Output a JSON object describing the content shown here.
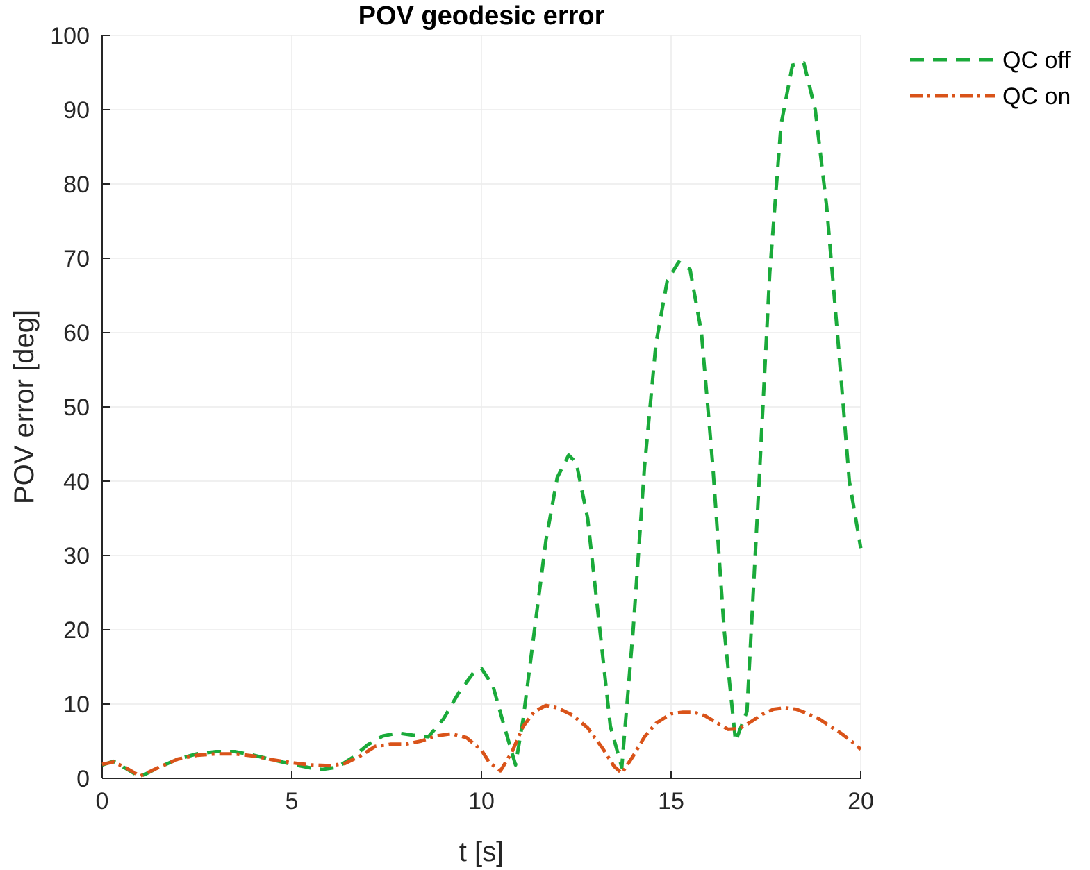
{
  "chart_data": {
    "type": "line",
    "title": "POV geodesic error",
    "xlabel": "t [s]",
    "ylabel": "POV error [deg]",
    "xlim": [
      0,
      20
    ],
    "ylim": [
      0,
      100
    ],
    "xticks": [
      0,
      5,
      10,
      15,
      20
    ],
    "yticks": [
      0,
      10,
      20,
      30,
      40,
      50,
      60,
      70,
      80,
      90,
      100
    ],
    "grid": true,
    "legend_position": "top-right outside",
    "series": [
      {
        "name": "QC off",
        "color": "#1aaa3a",
        "style": "dashed",
        "x": [
          0,
          0.3,
          0.6,
          1.0,
          1.5,
          2.0,
          2.5,
          3.0,
          3.5,
          4.0,
          4.5,
          5.0,
          5.5,
          5.8,
          6.2,
          6.6,
          7.0,
          7.4,
          7.8,
          8.2,
          8.6,
          9.0,
          9.4,
          9.8,
          10.0,
          10.3,
          10.6,
          10.9,
          11.1,
          11.4,
          11.7,
          12.0,
          12.3,
          12.5,
          12.8,
          13.1,
          13.4,
          13.7,
          14.0,
          14.3,
          14.6,
          14.9,
          15.2,
          15.5,
          15.8,
          16.1,
          16.4,
          16.7,
          17.0,
          17.3,
          17.6,
          17.9,
          18.2,
          18.5,
          18.8,
          19.1,
          19.4,
          19.7,
          20.0
        ],
        "values": [
          1.8,
          2.3,
          1.4,
          0.2,
          1.5,
          2.6,
          3.3,
          3.6,
          3.6,
          3.1,
          2.5,
          1.9,
          1.4,
          1.2,
          1.5,
          2.8,
          4.5,
          5.7,
          6.1,
          5.8,
          5.6,
          8.0,
          11.5,
          14.3,
          14.8,
          12.5,
          7.0,
          1.8,
          8.0,
          20.0,
          32.0,
          40.5,
          43.5,
          42.5,
          35.0,
          21.0,
          7.0,
          1.5,
          20.0,
          42.0,
          58.5,
          67.0,
          69.5,
          68.5,
          60.0,
          42.0,
          20.0,
          5.0,
          9.0,
          38.0,
          68.0,
          88.0,
          96.0,
          96.3,
          90.0,
          77.0,
          59.0,
          40.0,
          31.0
        ]
      },
      {
        "name": "QC on",
        "color": "#d95319",
        "style": "dash-dot",
        "x": [
          0,
          0.3,
          0.6,
          1.0,
          1.5,
          2.0,
          2.5,
          3.0,
          3.5,
          4.0,
          4.5,
          5.0,
          5.5,
          6.0,
          6.4,
          6.8,
          7.2,
          7.6,
          8.0,
          8.4,
          8.8,
          9.2,
          9.6,
          10.0,
          10.2,
          10.5,
          10.8,
          11.1,
          11.4,
          11.7,
          12.0,
          12.4,
          12.8,
          13.2,
          13.5,
          13.7,
          14.0,
          14.3,
          14.6,
          15.0,
          15.3,
          15.6,
          15.9,
          16.2,
          16.5,
          16.8,
          17.1,
          17.4,
          17.7,
          18.0,
          18.3,
          18.6,
          18.9,
          19.2,
          19.5,
          19.8,
          20.0
        ],
        "values": [
          1.9,
          2.2,
          1.5,
          0.3,
          1.5,
          2.6,
          3.1,
          3.3,
          3.3,
          3.0,
          2.5,
          2.1,
          1.8,
          1.7,
          2.0,
          3.0,
          4.3,
          4.6,
          4.6,
          5.0,
          5.7,
          6.0,
          5.5,
          3.8,
          2.2,
          1.0,
          3.5,
          7.0,
          9.0,
          9.8,
          9.5,
          8.5,
          6.8,
          4.0,
          1.6,
          0.7,
          3.0,
          5.6,
          7.4,
          8.7,
          8.9,
          8.9,
          8.4,
          7.5,
          6.6,
          6.7,
          7.6,
          8.6,
          9.3,
          9.5,
          9.3,
          8.7,
          8.0,
          7.0,
          6.0,
          4.8,
          3.9
        ]
      }
    ]
  }
}
